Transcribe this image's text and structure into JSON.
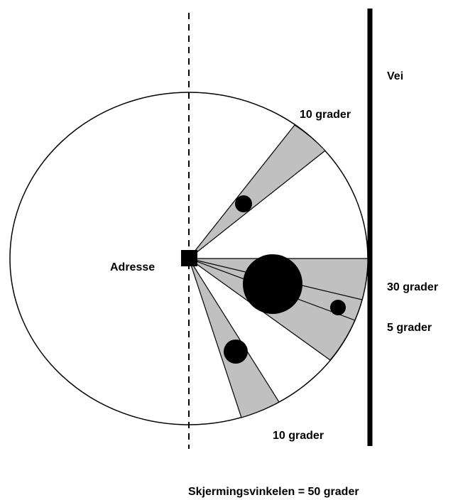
{
  "road_label": "Vei",
  "address_label": "Adresse",
  "angle_labels": [
    "10 grader",
    "30 grader",
    "5 grader",
    "10 grader"
  ],
  "summary": "Skjermingsvinkelen = 50 grader"
}
